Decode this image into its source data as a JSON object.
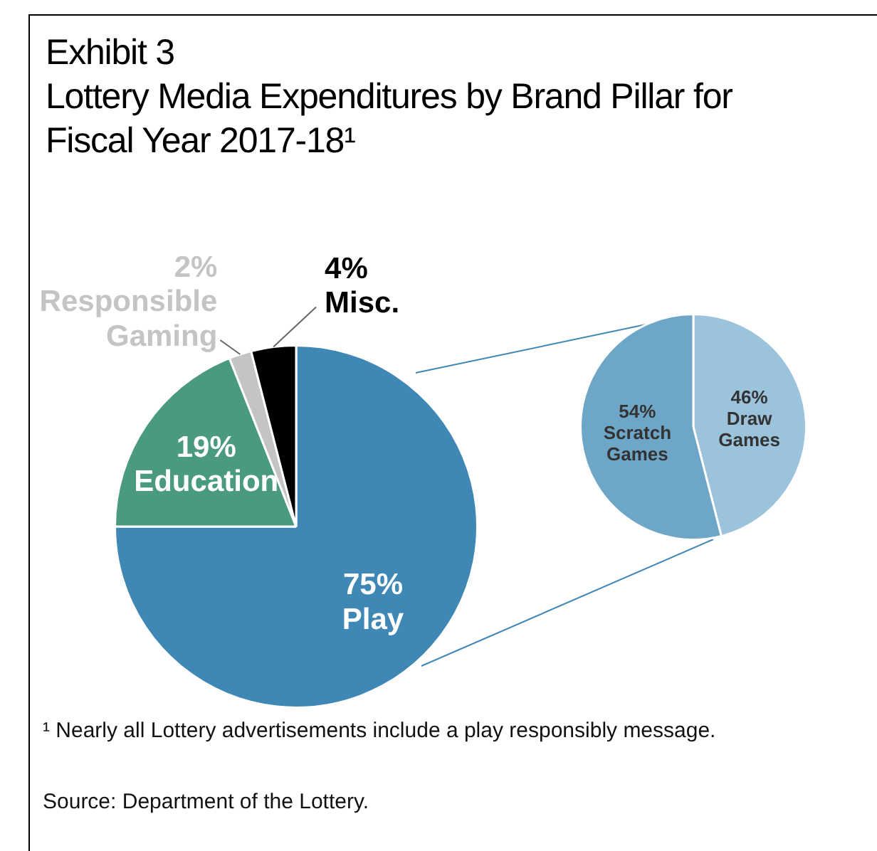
{
  "chart_data": [
    {
      "type": "pie",
      "title": "Exhibit 3",
      "subtitle": "Lottery Media Expenditures by Brand Pillar for Fiscal Year 2017-18¹",
      "categories": [
        "Play",
        "Education",
        "Responsible Gaming",
        "Misc."
      ],
      "values": [
        75,
        19,
        2,
        4
      ],
      "colors": [
        "#3f88b5",
        "#4a9a7e",
        "#c4c4c4",
        "#000000"
      ],
      "value_labels": [
        "75%",
        "19%",
        "2%",
        "4%"
      ],
      "annotations": [
        "¹ Nearly all Lottery advertisements include a play responsibly message.",
        "Source:  Department of the Lottery."
      ]
    },
    {
      "type": "pie",
      "categories": [
        "Draw Games",
        "Scratch Games"
      ],
      "values": [
        46,
        54
      ],
      "colors": [
        "#9cc3dc",
        "#6ea6c8"
      ],
      "value_labels": [
        "46%",
        "54%"
      ]
    }
  ]
}
